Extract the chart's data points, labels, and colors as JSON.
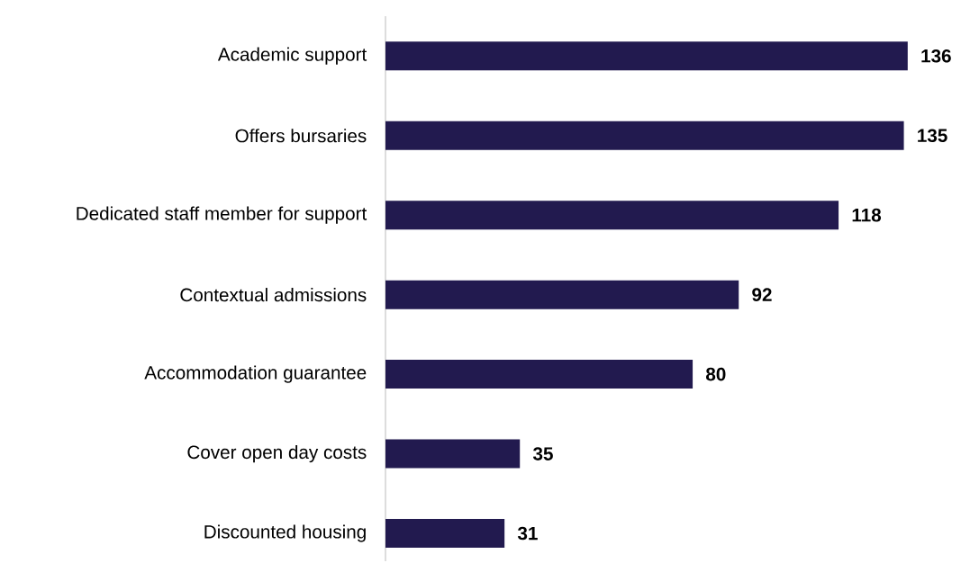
{
  "chart_data": {
    "type": "bar",
    "orientation": "horizontal",
    "categories": [
      "Academic support",
      "Offers bursaries",
      "Dedicated staff member for support",
      "Contextual admissions",
      "Accommodation guarantee",
      "Cover open day costs",
      "Discounted housing"
    ],
    "values": [
      136,
      135,
      118,
      92,
      80,
      35,
      31
    ],
    "color": "#221a4f",
    "data_labels": true
  }
}
